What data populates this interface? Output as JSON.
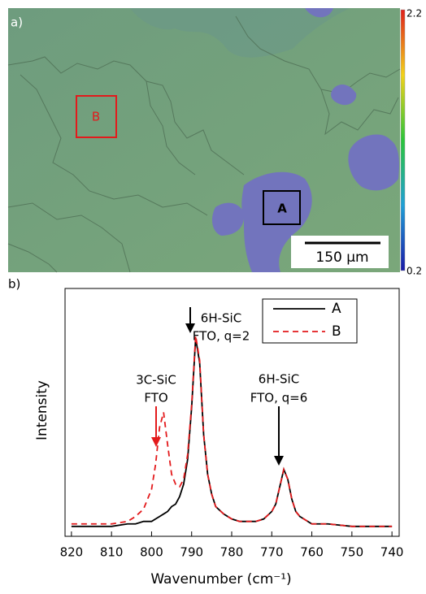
{
  "image_panel": {
    "label": "a)",
    "colorbar": {
      "max": 2.2,
      "min": 0.2
    },
    "regions": [
      "B",
      "A"
    ],
    "scale_bar": "150 µm"
  },
  "chart_panel_label": "b)",
  "chart_data": {
    "type": "line",
    "x_label": "Wavenumber (cm⁻¹)",
    "y_label": "Intensity",
    "x": [
      820,
      815,
      810,
      806,
      804,
      802,
      800,
      799,
      798,
      797,
      796,
      795,
      794,
      793,
      792,
      791,
      790,
      789,
      788,
      787,
      786,
      785,
      784,
      782,
      780,
      778,
      776,
      774,
      772,
      770,
      769,
      768,
      767,
      766,
      765,
      764,
      763,
      762,
      760,
      756,
      750,
      745,
      740
    ],
    "series": [
      {
        "name": "A",
        "color": "#000000",
        "line_style": "solid",
        "values": [
          0.04,
          0.04,
          0.04,
          0.05,
          0.05,
          0.06,
          0.06,
          0.07,
          0.08,
          0.09,
          0.1,
          0.12,
          0.13,
          0.16,
          0.21,
          0.31,
          0.52,
          0.8,
          0.7,
          0.41,
          0.25,
          0.17,
          0.12,
          0.09,
          0.07,
          0.06,
          0.06,
          0.06,
          0.07,
          0.1,
          0.13,
          0.2,
          0.27,
          0.23,
          0.15,
          0.1,
          0.08,
          0.07,
          0.05,
          0.05,
          0.04,
          0.04,
          0.04
        ]
      },
      {
        "name": "B",
        "color": "#e31a1c",
        "line_style": "dashed",
        "values": [
          0.05,
          0.05,
          0.05,
          0.06,
          0.08,
          0.11,
          0.19,
          0.29,
          0.44,
          0.5,
          0.37,
          0.25,
          0.21,
          0.2,
          0.23,
          0.33,
          0.53,
          0.81,
          0.71,
          0.41,
          0.25,
          0.17,
          0.12,
          0.09,
          0.07,
          0.06,
          0.06,
          0.06,
          0.07,
          0.1,
          0.13,
          0.2,
          0.27,
          0.23,
          0.15,
          0.1,
          0.08,
          0.07,
          0.05,
          0.05,
          0.04,
          0.04,
          0.04
        ]
      }
    ],
    "xlim": [
      821.6,
      738.2
    ],
    "ylim": [
      0,
      1
    ],
    "xticks": [
      820,
      810,
      800,
      790,
      780,
      770,
      760,
      750,
      740
    ],
    "annotations": [
      [
        "6H-SiC",
        "FTO, q=2"
      ],
      [
        "3C-SiC",
        "FTO"
      ],
      [
        "6H-SiC",
        "FTO, q=6"
      ]
    ],
    "legend": "upper right"
  }
}
